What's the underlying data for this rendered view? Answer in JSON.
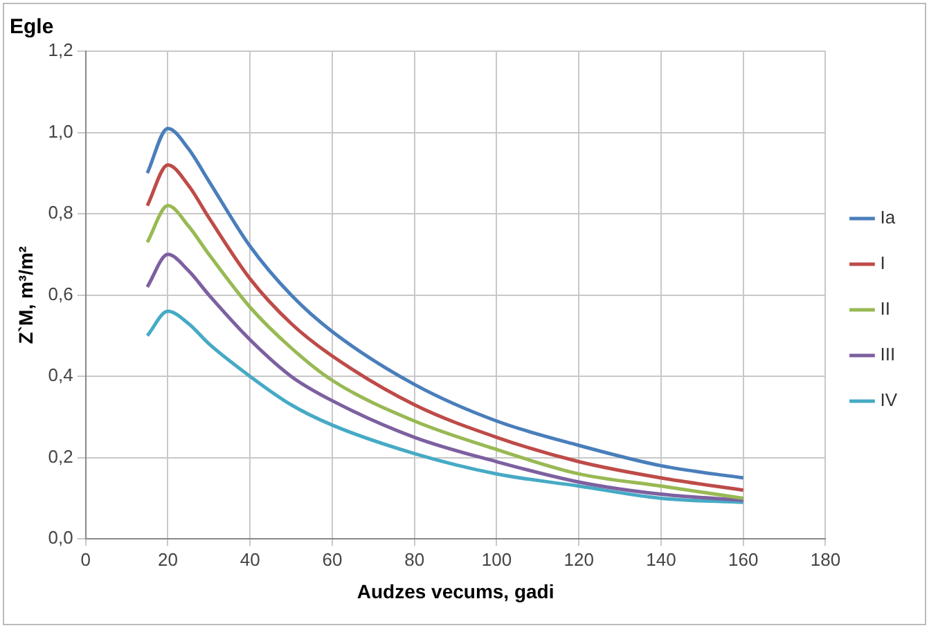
{
  "chart_data": {
    "type": "line",
    "title": "Egle",
    "xlabel": "Audzes vecums, gadi",
    "ylabel": "Z`M, m³/m²",
    "x": [
      15,
      20,
      25,
      30,
      40,
      50,
      60,
      80,
      100,
      120,
      140,
      160
    ],
    "series": [
      {
        "name": "Ia",
        "color": "#4a7ebb",
        "values": [
          0.9,
          1.01,
          0.96,
          0.88,
          0.72,
          0.6,
          0.51,
          0.38,
          0.29,
          0.23,
          0.18,
          0.15
        ]
      },
      {
        "name": "I",
        "color": "#be4b48",
        "values": [
          0.82,
          0.92,
          0.87,
          0.79,
          0.64,
          0.53,
          0.45,
          0.33,
          0.25,
          0.19,
          0.15,
          0.12
        ]
      },
      {
        "name": "II",
        "color": "#98b954",
        "values": [
          0.73,
          0.82,
          0.77,
          0.7,
          0.57,
          0.47,
          0.39,
          0.29,
          0.22,
          0.16,
          0.13,
          0.1
        ]
      },
      {
        "name": "III",
        "color": "#7d60a0",
        "values": [
          0.62,
          0.7,
          0.66,
          0.6,
          0.49,
          0.4,
          0.34,
          0.25,
          0.19,
          0.14,
          0.11,
          0.095
        ]
      },
      {
        "name": "IV",
        "color": "#46aac5",
        "values": [
          0.5,
          0.56,
          0.53,
          0.48,
          0.4,
          0.33,
          0.28,
          0.21,
          0.16,
          0.13,
          0.1,
          0.09
        ]
      }
    ],
    "xlim": [
      0,
      180
    ],
    "xticks": [
      0,
      20,
      40,
      60,
      80,
      100,
      120,
      140,
      160,
      180
    ],
    "ylim": [
      0,
      1.2
    ],
    "yticks": [
      {
        "value": 0,
        "label": "0,0"
      },
      {
        "value": 0.2,
        "label": "0,2"
      },
      {
        "value": 0.4,
        "label": "0,4"
      },
      {
        "value": 0.6,
        "label": "0,6"
      },
      {
        "value": 0.8,
        "label": "0,8"
      },
      {
        "value": 1.0,
        "label": "1,0"
      },
      {
        "value": 1.2,
        "label": "1,2"
      }
    ],
    "grid": true,
    "legend": "right",
    "marker": "none",
    "line_style": "solid"
  }
}
